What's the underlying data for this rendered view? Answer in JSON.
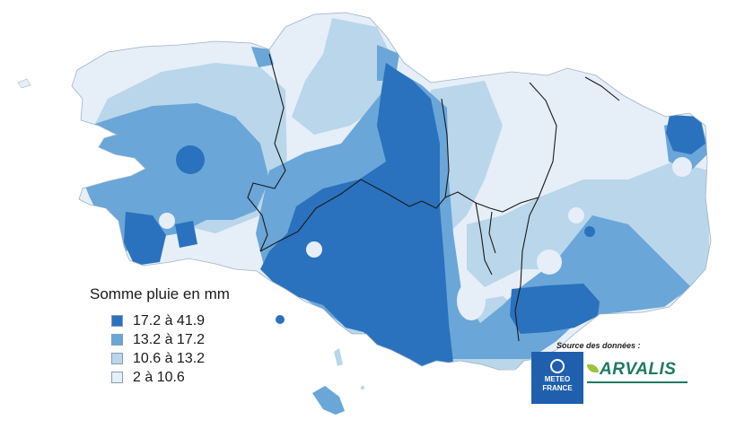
{
  "legend": {
    "title": "Somme pluie en mm",
    "classes": [
      {
        "label": "17.2 à 41.9",
        "color": "#2a72bd"
      },
      {
        "label": "13.2 à 17.2",
        "color": "#6aa6d8"
      },
      {
        "label": "10.6 à 13.2",
        "color": "#b9d6ea"
      },
      {
        "label": "2 à 10.6",
        "color": "#e6eef8"
      }
    ]
  },
  "source": {
    "caption": "Source des données :",
    "meteo_line1": "METEO",
    "meteo_line2": "FRANCE",
    "arvalis_text": "ARVALIS"
  },
  "colors": {
    "border": "#1a1a1a"
  }
}
